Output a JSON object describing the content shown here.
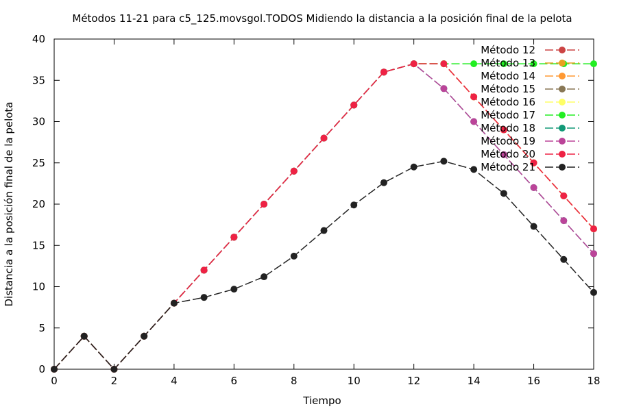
{
  "chart_data": {
    "type": "line",
    "title": "Métodos 11-21 para c5_125.movsgol.TODOS Midiendo la distancia a la posición final de la pelota",
    "xlabel": "Tiempo",
    "ylabel": "Distancia a la posición final de la pelota",
    "xlim": [
      0,
      18
    ],
    "ylim": [
      0,
      40
    ],
    "xticks": [
      0,
      2,
      4,
      6,
      8,
      10,
      12,
      14,
      16,
      18
    ],
    "yticks": [
      0,
      5,
      10,
      15,
      20,
      25,
      30,
      35,
      40
    ],
    "grid": false,
    "legend_position": "top-right",
    "x": [
      0,
      1,
      2,
      3,
      4,
      5,
      6,
      7,
      8,
      9,
      10,
      11,
      12,
      13,
      14,
      15,
      16,
      17,
      18
    ],
    "series": [
      {
        "name": "Método 12",
        "color": "#cc4444",
        "values": [
          0,
          4,
          0,
          4,
          8,
          12,
          16,
          20,
          24,
          28,
          32,
          36,
          37,
          37,
          33,
          29,
          25,
          21,
          17
        ]
      },
      {
        "name": "Método 13",
        "color": "#e8a020",
        "values": [
          0,
          4,
          0,
          4,
          8,
          12,
          16,
          20,
          24,
          28,
          32,
          36,
          37,
          37,
          33,
          29,
          25,
          21,
          17
        ]
      },
      {
        "name": "Método 14",
        "color": "#ff9933",
        "values": [
          0,
          4,
          0,
          4,
          8,
          12,
          16,
          20,
          24,
          28,
          32,
          36,
          37,
          37,
          33,
          29,
          25,
          21,
          17
        ]
      },
      {
        "name": "Método 15",
        "color": "#887755",
        "values": [
          0,
          4,
          0,
          4,
          8,
          12,
          16,
          20,
          24,
          28,
          32,
          36,
          37,
          37,
          33,
          29,
          25,
          21,
          17
        ]
      },
      {
        "name": "Método 16",
        "color": "#ffff66",
        "values": [
          0,
          4,
          0,
          4,
          8,
          12,
          16,
          20,
          24,
          28,
          32,
          36,
          37,
          37,
          33,
          29,
          25,
          21,
          17
        ]
      },
      {
        "name": "Método 17",
        "color": "#22ee22",
        "values": [
          0,
          4,
          0,
          4,
          8,
          12,
          16,
          20,
          24,
          28,
          32,
          36,
          37,
          37,
          37,
          37,
          37,
          37,
          37
        ]
      },
      {
        "name": "Método 18",
        "color": "#119977",
        "values": [
          0,
          4,
          0,
          4,
          8,
          12,
          16,
          20,
          24,
          28,
          32,
          36,
          37,
          34,
          30,
          26,
          22,
          18,
          14
        ]
      },
      {
        "name": "Método 19",
        "color": "#bb4499",
        "values": [
          0,
          4,
          0,
          4,
          8,
          12,
          16,
          20,
          24,
          28,
          32,
          36,
          37,
          34,
          30,
          26,
          22,
          18,
          14
        ]
      },
      {
        "name": "Método 20",
        "color": "#ee2244",
        "values": [
          0,
          4,
          0,
          4,
          8,
          12,
          16,
          20,
          24,
          28,
          32,
          36,
          37,
          37,
          33,
          29,
          25,
          21,
          17
        ]
      },
      {
        "name": "Método 21",
        "color": "#222222",
        "values": [
          0,
          4,
          0,
          4,
          8,
          8.7,
          9.7,
          11.2,
          13.7,
          16.8,
          19.9,
          22.6,
          24.5,
          25.2,
          24.2,
          21.3,
          17.3,
          13.3,
          9.3
        ]
      }
    ]
  }
}
